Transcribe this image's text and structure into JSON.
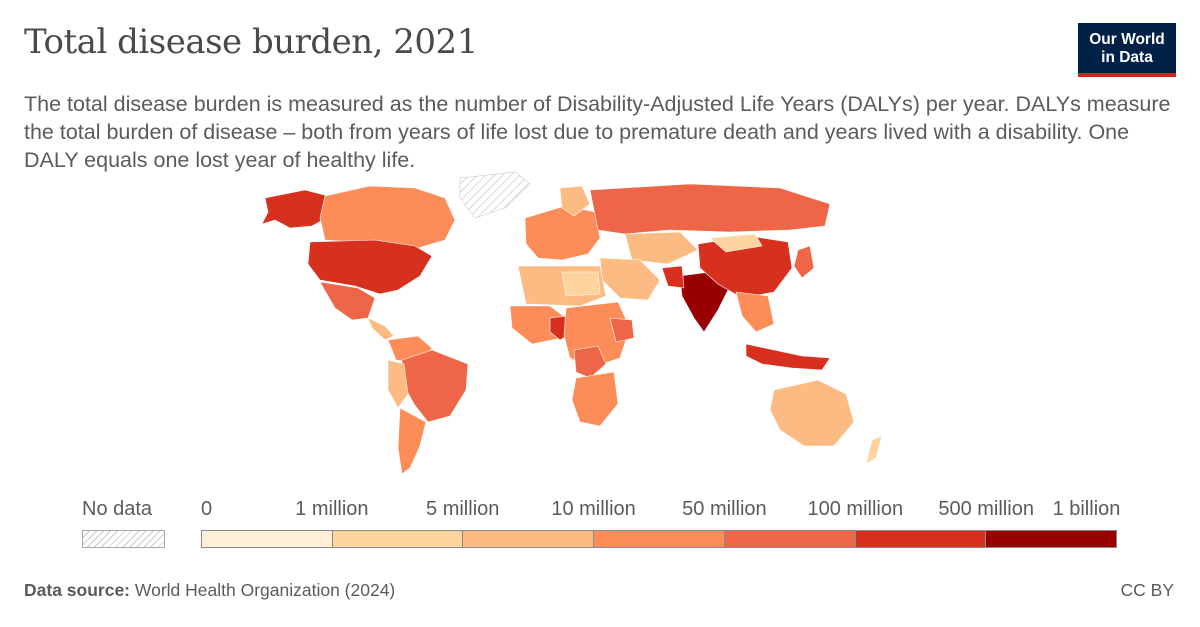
{
  "title": "Total disease burden, 2021",
  "subtitle": "The total disease burden is measured as the number of Disability-Adjusted Life Years (DALYs) per year. DALYs measure the total burden of disease – both from years of life lost due to premature death and years lived with a disability. One DALY equals one lost year of healthy life.",
  "logo": {
    "line1": "Our World",
    "line2": "in Data"
  },
  "legend": {
    "no_data_label": "No data",
    "ticks": [
      "0",
      "1 million",
      "5 million",
      "10 million",
      "50 million",
      "100 million",
      "500 million",
      "1 billion"
    ],
    "colors": [
      "#fef0d9",
      "#fdd49e",
      "#fdbb84",
      "#fc8d59",
      "#ef6548",
      "#d7301f",
      "#990000"
    ]
  },
  "footer": {
    "source_label": "Data source:",
    "source_text": "World Health Organization (2024)",
    "license": "CC BY"
  },
  "chart_data": {
    "type": "choropleth",
    "title": "Total disease burden, 2021",
    "bins": [
      "0",
      "1 million",
      "5 million",
      "10 million",
      "50 million",
      "100 million",
      "500 million",
      "1 billion"
    ],
    "regions": [
      {
        "name": "India",
        "bin": 6
      },
      {
        "name": "China",
        "bin": 5
      },
      {
        "name": "United States",
        "bin": 5
      },
      {
        "name": "Indonesia",
        "bin": 5
      },
      {
        "name": "Nigeria",
        "bin": 5
      },
      {
        "name": "Pakistan",
        "bin": 5
      },
      {
        "name": "Bangladesh",
        "bin": 5
      },
      {
        "name": "Russia",
        "bin": 4
      },
      {
        "name": "Brazil",
        "bin": 4
      },
      {
        "name": "DR Congo",
        "bin": 4
      },
      {
        "name": "Ethiopia",
        "bin": 4
      },
      {
        "name": "Mexico",
        "bin": 4
      },
      {
        "name": "Canada",
        "bin": 3
      },
      {
        "name": "Argentina",
        "bin": 3
      },
      {
        "name": "Colombia",
        "bin": 3
      },
      {
        "name": "Algeria",
        "bin": 3
      },
      {
        "name": "Australia",
        "bin": 2
      },
      {
        "name": "Kazakhstan",
        "bin": 2
      },
      {
        "name": "Mongolia",
        "bin": 1
      },
      {
        "name": "Libya",
        "bin": 1
      },
      {
        "name": "Greenland",
        "bin": null
      }
    ]
  }
}
